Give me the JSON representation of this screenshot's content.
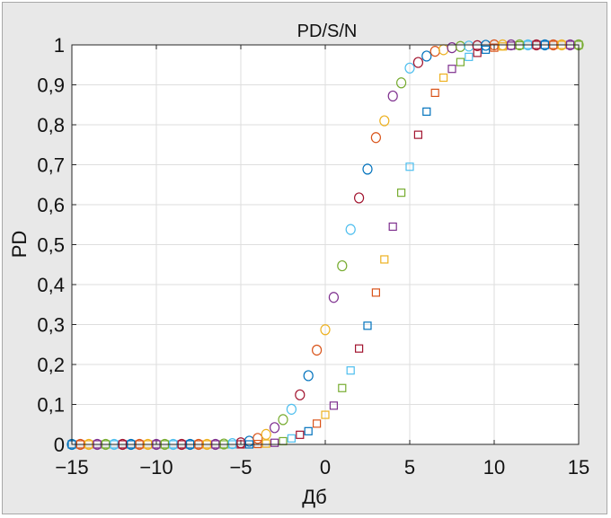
{
  "chart_data": {
    "type": "scatter",
    "title": "PD/S/N",
    "xlabel": "Дб",
    "ylabel": "PD",
    "xlim": [
      -15,
      15
    ],
    "ylim": [
      0,
      1
    ],
    "xticks": [
      -15,
      -10,
      -5,
      0,
      5,
      10,
      15
    ],
    "xtick_labels": [
      "−15",
      "−10",
      "−5",
      "0",
      "5",
      "10",
      "15"
    ],
    "yticks": [
      0,
      0.1,
      0.2,
      0.3,
      0.4,
      0.5,
      0.6,
      0.7,
      0.8,
      0.9,
      1
    ],
    "ytick_labels": [
      "0",
      "0,1",
      "0,2",
      "0,3",
      "0,4",
      "0,5",
      "0,6",
      "0,7",
      "0,8",
      "0,9",
      "1"
    ],
    "grid": true,
    "colors": [
      "#0072bd",
      "#d95319",
      "#edb120",
      "#7e2f8e",
      "#77ac30",
      "#4dbeee",
      "#a2142f"
    ],
    "series": [
      {
        "marker": "circle",
        "x": [
          -15,
          -14.5,
          -14,
          -13.5,
          -13,
          -12.5,
          -12,
          -11.5,
          -11,
          -10.5,
          -10,
          -9.5,
          -9,
          -8.5,
          -8,
          -7.5,
          -7,
          -6.5,
          -6,
          -5.5,
          -5,
          -4.5,
          -4,
          -3.5,
          -3,
          -2.5,
          -2,
          -1.5,
          -1,
          -0.5,
          0,
          0.5,
          1,
          1.5,
          2,
          2.5,
          3,
          3.5,
          4,
          4.5,
          5,
          5.5,
          6,
          6.5,
          7,
          7.5,
          8,
          8.5,
          9,
          9.5,
          10,
          10.5,
          11,
          11.5,
          12,
          12.5,
          13,
          13.5,
          14,
          14.5,
          15
        ],
        "y": [
          0,
          0,
          0,
          0,
          0,
          0,
          0,
          0,
          0,
          0,
          0,
          0,
          0,
          0,
          0,
          0,
          0,
          0,
          0.001,
          0.002,
          0.004,
          0.008,
          0.015,
          0.025,
          0.042,
          0.062,
          0.088,
          0.124,
          0.172,
          0.236,
          0.287,
          0.368,
          0.447,
          0.538,
          0.617,
          0.689,
          0.768,
          0.81,
          0.872,
          0.905,
          0.942,
          0.956,
          0.972,
          0.984,
          0.988,
          0.993,
          0.996,
          0.997,
          0.998,
          0.999,
          1,
          1,
          1,
          1,
          1,
          1,
          1,
          1,
          1,
          1,
          1
        ]
      },
      {
        "marker": "square",
        "x": [
          -15,
          -14.5,
          -14,
          -13.5,
          -13,
          -12.5,
          -12,
          -11.5,
          -11,
          -10.5,
          -10,
          -9.5,
          -9,
          -8.5,
          -8,
          -7.5,
          -7,
          -6.5,
          -6,
          -5.5,
          -5,
          -4.5,
          -4,
          -3.5,
          -3,
          -2.5,
          -2,
          -1.5,
          -1,
          -0.5,
          0,
          0.5,
          1,
          1.5,
          2,
          2.5,
          3,
          3.5,
          4,
          4.5,
          5,
          5.5,
          6,
          6.5,
          7,
          7.5,
          8,
          8.5,
          9,
          9.5,
          10,
          10.5,
          11,
          11.5,
          12,
          12.5,
          13,
          13.5,
          14,
          14.5,
          15
        ],
        "y": [
          0,
          0,
          0,
          0,
          0,
          0,
          0,
          0,
          0,
          0,
          0,
          0,
          0,
          0,
          0,
          0,
          0,
          0,
          0,
          0,
          0,
          0,
          0.001,
          0.002,
          0.004,
          0.008,
          0.015,
          0.024,
          0.033,
          0.052,
          0.074,
          0.097,
          0.141,
          0.185,
          0.24,
          0.297,
          0.38,
          0.463,
          0.545,
          0.63,
          0.695,
          0.775,
          0.833,
          0.88,
          0.918,
          0.94,
          0.957,
          0.97,
          0.98,
          0.988,
          0.993,
          0.996,
          0.998,
          0.999,
          1,
          1,
          1,
          1,
          1,
          1,
          1
        ]
      }
    ]
  }
}
